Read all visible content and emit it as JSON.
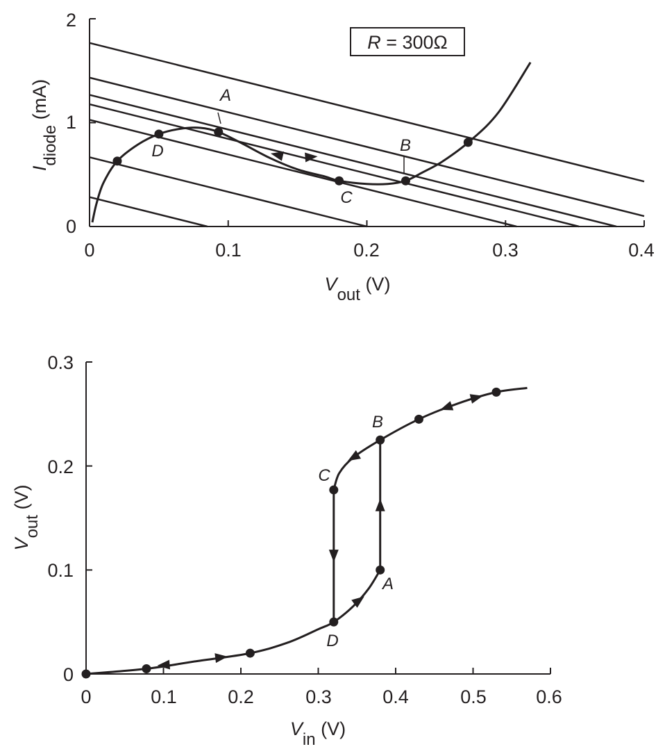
{
  "chart_data": [
    {
      "type": "line",
      "title": "",
      "xlabel": "Vout (V)",
      "ylabel": "Idiode (mA)",
      "xlim": [
        0,
        0.4
      ],
      "ylim": [
        0,
        2
      ],
      "x_ticks": [
        "0",
        "0.1",
        "0.2",
        "0.3",
        "0.4"
      ],
      "y_ticks": [
        "0",
        "1",
        "2"
      ],
      "annotation": "R = 300Ω",
      "diode_curve": {
        "x": [
          0.002,
          0.005,
          0.01,
          0.02,
          0.035,
          0.05,
          0.065,
          0.08,
          0.093,
          0.11,
          0.13,
          0.15,
          0.17,
          0.18,
          0.2,
          0.215,
          0.228,
          0.24,
          0.255,
          0.275,
          0.295,
          0.318
        ],
        "y": [
          0.04,
          0.22,
          0.42,
          0.63,
          0.79,
          0.89,
          0.94,
          0.95,
          0.91,
          0.8,
          0.66,
          0.55,
          0.48,
          0.44,
          0.41,
          0.41,
          0.44,
          0.52,
          0.63,
          0.83,
          1.1,
          1.58
        ]
      },
      "load_lines": [
        {
          "vin": 0.085,
          "i0": 0.283
        },
        {
          "vin": 0.2,
          "i0": 0.667
        },
        {
          "vin": 0.308,
          "i0": 1.027
        },
        {
          "vin": 0.353,
          "i0": 1.177
        },
        {
          "vin": 0.38,
          "i0": 1.267
        },
        {
          "vin": 0.43,
          "i0": 1.433
        },
        {
          "vin": 0.53,
          "i0": 1.767
        }
      ],
      "points": [
        {
          "x": 0.02,
          "y": 0.63,
          "label": ""
        },
        {
          "x": 0.05,
          "y": 0.89,
          "label": "D"
        },
        {
          "x": 0.093,
          "y": 0.91,
          "label": "A"
        },
        {
          "x": 0.18,
          "y": 0.44,
          "label": "C"
        },
        {
          "x": 0.228,
          "y": 0.44,
          "label": "B"
        },
        {
          "x": 0.273,
          "y": 0.81,
          "label": ""
        }
      ]
    },
    {
      "type": "line",
      "title": "",
      "xlabel": "Vin (V)",
      "ylabel": "Vout (V)",
      "xlim": [
        0,
        0.6
      ],
      "ylim": [
        0,
        0.3
      ],
      "x_ticks": [
        "0",
        "0.1",
        "0.2",
        "0.3",
        "0.4",
        "0.5",
        "0.6"
      ],
      "y_ticks": [
        "0",
        "0.1",
        "0.2",
        "0.3"
      ],
      "lower_branch": {
        "x": [
          0,
          0.078,
          0.14,
          0.212,
          0.26,
          0.3,
          0.32,
          0.345,
          0.365,
          0.38
        ],
        "y": [
          0,
          0.005,
          0.012,
          0.02,
          0.03,
          0.043,
          0.05,
          0.065,
          0.082,
          0.1
        ]
      },
      "upper_branch": {
        "x": [
          0.32,
          0.327,
          0.345,
          0.38,
          0.43,
          0.48,
          0.53,
          0.57
        ],
        "y": [
          0.177,
          0.193,
          0.208,
          0.225,
          0.245,
          0.26,
          0.271,
          0.275
        ]
      },
      "jumps": [
        {
          "x": 0.38,
          "from": 0.1,
          "to": 0.225,
          "direction": "up"
        },
        {
          "x": 0.32,
          "from": 0.177,
          "to": 0.05,
          "direction": "down"
        }
      ],
      "points": [
        {
          "x": 0,
          "y": 0,
          "label": ""
        },
        {
          "x": 0.078,
          "y": 0.005,
          "label": ""
        },
        {
          "x": 0.212,
          "y": 0.02,
          "label": ""
        },
        {
          "x": 0.32,
          "y": 0.05,
          "label": "D"
        },
        {
          "x": 0.38,
          "y": 0.1,
          "label": "A"
        },
        {
          "x": 0.32,
          "y": 0.177,
          "label": "C"
        },
        {
          "x": 0.38,
          "y": 0.225,
          "label": "B"
        },
        {
          "x": 0.43,
          "y": 0.245,
          "label": ""
        },
        {
          "x": 0.53,
          "y": 0.271,
          "label": ""
        }
      ]
    }
  ]
}
